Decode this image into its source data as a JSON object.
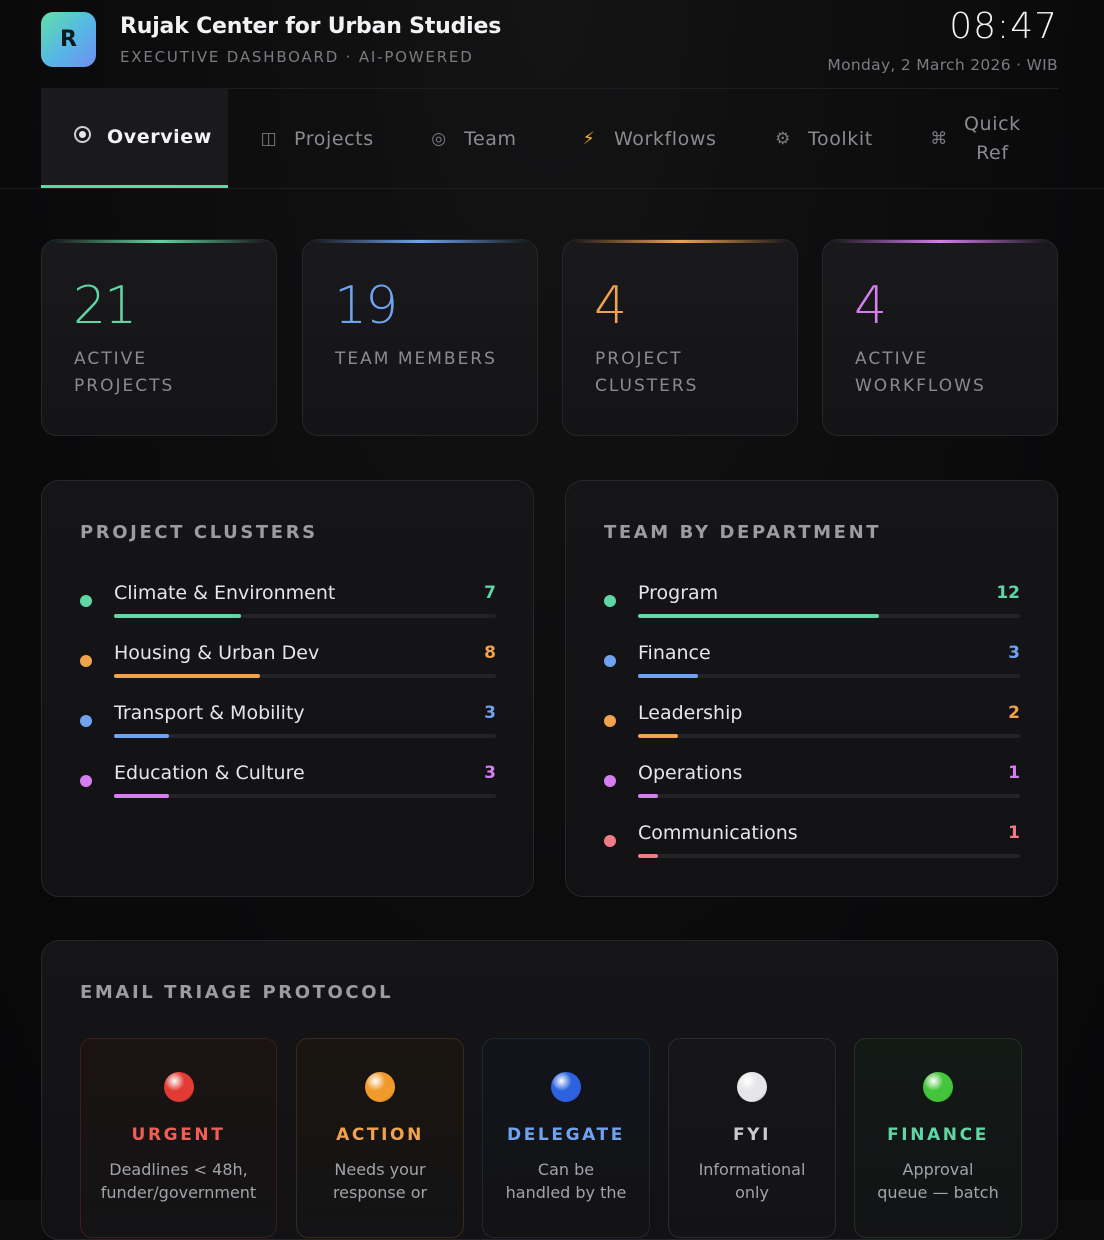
{
  "header": {
    "logo_letter": "R",
    "org_name": "Rujak Center for Urban Studies",
    "subtitle": "EXECUTIVE DASHBOARD · AI-POWERED",
    "time": "08:47",
    "date": "Monday, 2 March 2026 · WIB"
  },
  "nav": {
    "tabs": [
      {
        "label": "Overview",
        "icon": "radio-icon",
        "active": true
      },
      {
        "label": "Projects",
        "icon": "columns-icon",
        "glyph": "◫"
      },
      {
        "label": "Team",
        "icon": "circle-target-icon",
        "glyph": "◎"
      },
      {
        "label": "Workflows",
        "icon": "lightning-icon",
        "glyph": "⚡"
      },
      {
        "label": "Toolkit",
        "icon": "gear-icon",
        "glyph": "⚙"
      },
      {
        "label_line1": "Quick",
        "label_line2": "Ref",
        "icon": "command-icon",
        "glyph": "⌘"
      }
    ]
  },
  "stats": [
    {
      "value": "21",
      "label": "ACTIVE PROJECTS",
      "color": "#5fd6a3"
    },
    {
      "value": "19",
      "label": "TEAM MEMBERS",
      "color": "#6fa3f2"
    },
    {
      "value": "4",
      "label": "PROJECT CLUSTERS",
      "color": "#f0a24e"
    },
    {
      "value": "4",
      "label": "ACTIVE WORKFLOWS",
      "color": "#d47ef0"
    }
  ],
  "clusters": {
    "title": "PROJECT CLUSTERS",
    "items": [
      {
        "name": "Climate & Environment",
        "count": "7",
        "fraction": 0.333,
        "color": "#5fd6a3"
      },
      {
        "name": "Housing & Urban Dev",
        "count": "8",
        "fraction": 0.381,
        "color": "#f0a24e"
      },
      {
        "name": "Transport & Mobility",
        "count": "3",
        "fraction": 0.143,
        "color": "#6fa3f2"
      },
      {
        "name": "Education & Culture",
        "count": "3",
        "fraction": 0.143,
        "color": "#d47ef0"
      }
    ]
  },
  "departments": {
    "title": "TEAM BY DEPARTMENT",
    "items": [
      {
        "name": "Program",
        "count": "12",
        "fraction": 0.632,
        "color": "#5fd6a3"
      },
      {
        "name": "Finance",
        "count": "3",
        "fraction": 0.158,
        "color": "#6fa3f2"
      },
      {
        "name": "Leadership",
        "count": "2",
        "fraction": 0.105,
        "color": "#f0a24e"
      },
      {
        "name": "Operations",
        "count": "1",
        "fraction": 0.053,
        "color": "#d47ef0"
      },
      {
        "name": "Communications",
        "count": "1",
        "fraction": 0.053,
        "color": "#ef7b86"
      }
    ]
  },
  "triage": {
    "title": "EMAIL TRIAGE PROTOCOL",
    "cards": [
      {
        "name": "URGENT",
        "line1": "Deadlines < 48h,",
        "line2": "funder/government",
        "color": "#ef5f56",
        "orb": "#e23b33"
      },
      {
        "name": "ACTION",
        "line1": "Needs your",
        "line2": "response or",
        "color": "#f0a24e",
        "orb": "#f09a2c"
      },
      {
        "name": "DELEGATE",
        "line1": "Can be",
        "line2": "handled by the",
        "color": "#6fa3f2",
        "orb": "#2c62e0"
      },
      {
        "name": "FYI",
        "line1": "Informational",
        "line2": "only",
        "color": "#c9c9cf",
        "orb": "#e6e6e8"
      },
      {
        "name": "FINANCE",
        "line1": "Approval",
        "line2": "queue — batch",
        "color": "#5fd6a3",
        "orb": "#44c43a"
      }
    ]
  }
}
